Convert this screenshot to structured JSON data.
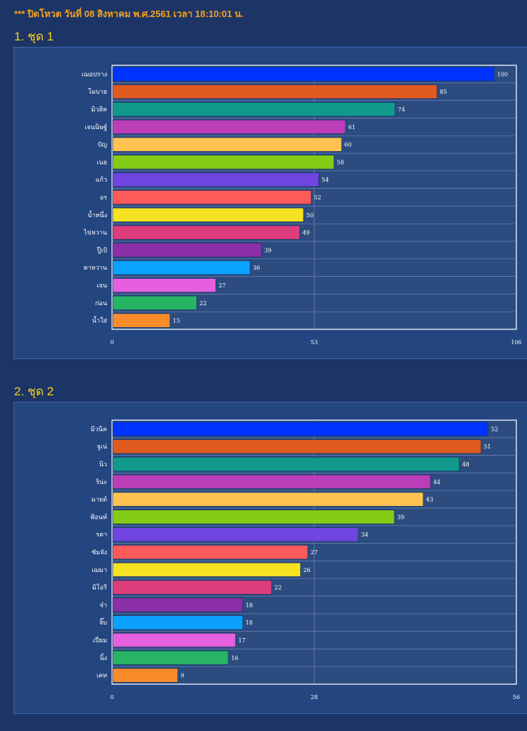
{
  "notice": "*** ปิดโหวต วันที่ 08 สิงหาคม พ.ศ.2561 เวลา 18:10:01 น.",
  "colors": [
    "#0033ff",
    "#e05a1f",
    "#119a8c",
    "#bb3db8",
    "#ffc351",
    "#84cc16",
    "#7045e0",
    "#ff5a5a",
    "#f5e322",
    "#dc3d7b",
    "#8b2fa6",
    "#0ba2ff",
    "#e65fde",
    "#27b465",
    "#fb8c2c"
  ],
  "chart_data": [
    {
      "type": "bar",
      "title": "1. ชุด 1",
      "categories": [
        "เฌอปราง",
        "โมบาย",
        "มิวสิค",
        "เจนนิษฐ์",
        "ปัญ",
        "เนย",
        "แก้ว",
        "อร",
        "น้ำหนึ่ง",
        "ไข่หวาน",
        "ปู๊เป้",
        "ตาหวาน",
        "เจน",
        "ก่อน",
        "น้ำใส"
      ],
      "values": [
        100,
        85,
        74,
        61,
        60,
        58,
        54,
        52,
        50,
        49,
        39,
        36,
        27,
        22,
        15
      ],
      "xlim": [
        0,
        106
      ],
      "ticks": [
        "0",
        "53",
        "106"
      ],
      "orientation": "horizontal",
      "grid": true
    },
    {
      "type": "bar",
      "title": "2. ชุด 2",
      "categories": [
        "มิวนิค",
        "จูเน่",
        "นิว",
        "ริน่ะ",
        "มายด์",
        "ฟ้อนท์",
        "รตา",
        "ซัมจัง",
        "เฌมา",
        "มิโอริ",
        "จ๋า",
        "จิ๊บ",
        "เปี่ยม",
        "นิ้ง",
        "เคท"
      ],
      "values": [
        52,
        51,
        48,
        44,
        43,
        39,
        34,
        27,
        26,
        22,
        18,
        18,
        17,
        16,
        9
      ],
      "xlim": [
        0,
        56
      ],
      "ticks": [
        "0",
        "28",
        "56"
      ],
      "orientation": "horizontal",
      "grid": true
    }
  ]
}
